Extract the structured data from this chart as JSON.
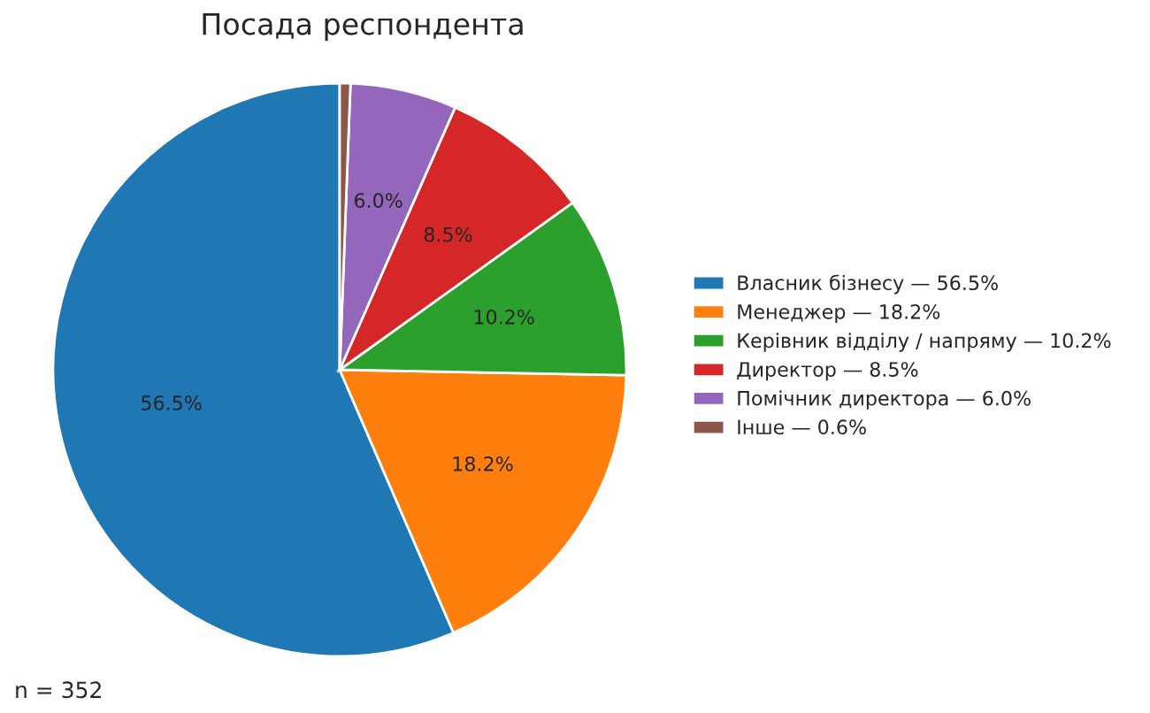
{
  "chart_data": {
    "type": "pie",
    "title": "Посада респондента",
    "categories": [
      "Власник бізнесу — 56.5%",
      "Менеджер — 18.2%",
      "Керівник відділу / напряму — 10.2%",
      "Директор — 8.5%",
      "Помічник директора — 6.0%",
      "Інше — 0.6%"
    ],
    "values": [
      56.5,
      18.2,
      10.2,
      8.5,
      6.0,
      0.6
    ],
    "value_labels": [
      "56.5%",
      "18.2%",
      "10.2%",
      "8.5%",
      "6.0%",
      null
    ],
    "colors": [
      "#1f77b4",
      "#ff7f0e",
      "#2ca02c",
      "#d62728",
      "#9467bd",
      "#8c564b"
    ],
    "legend": "right",
    "annotations": [
      "n = 352"
    ]
  }
}
